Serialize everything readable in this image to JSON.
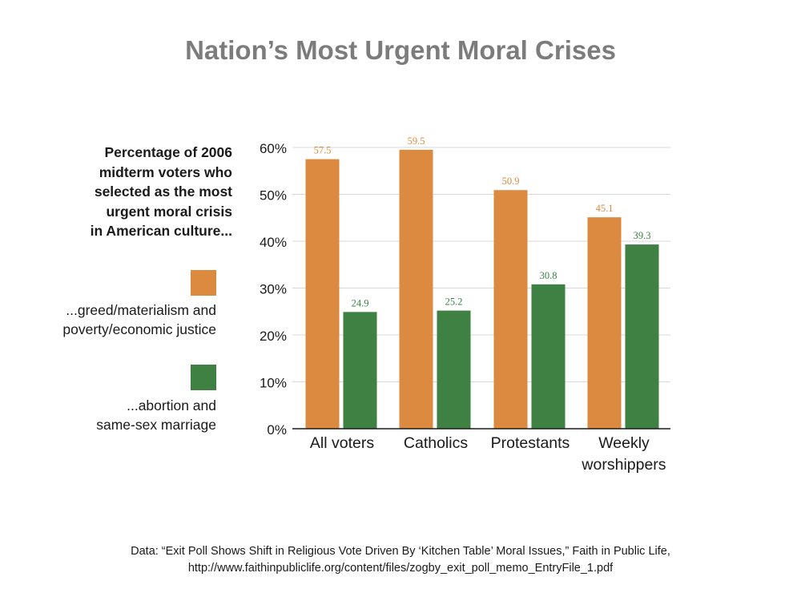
{
  "colors": {
    "series_orange": "#DC8A3F",
    "series_green": "#3E8143",
    "title": "#7C7C7C",
    "grid": "#D9D9D9",
    "text": "#1A1A1A"
  },
  "legend": {
    "heading_lines": [
      "Percentage of 2006",
      "midterm voters who",
      "selected as the most",
      "urgent moral crisis",
      "in American culture..."
    ],
    "items": [
      {
        "lines": [
          "...greed/materialism and",
          "poverty/economic justice"
        ],
        "color": "#DC8A3F"
      },
      {
        "lines": [
          "...abortion and",
          "same-sex marriage"
        ],
        "color": "#3E8143"
      }
    ]
  },
  "source": {
    "line1": "Data: “Exit Poll Shows Shift in Religious Vote Driven By ‘Kitchen Table’ Moral Issues,” Faith in Public Life,",
    "line2": "http://www.faithinpubliclife.org/content/files/zogby_exit_poll_memo_EntryFile_1.pdf"
  },
  "chart_data": {
    "type": "bar",
    "title": "Nation’s Most Urgent Moral Crises",
    "categories": [
      [
        "All voters"
      ],
      [
        "Catholics"
      ],
      [
        "Protestants"
      ],
      [
        "Weekly",
        "worshippers"
      ]
    ],
    "series": [
      {
        "color": "#DC8A3F",
        "values": [
          57.5,
          59.5,
          50.9,
          45.1
        ],
        "labels": [
          "57.5",
          "59.5",
          "50.9",
          "45.1"
        ]
      },
      {
        "color": "#3E8143",
        "values": [
          24.9,
          25.2,
          30.8,
          39.3
        ],
        "labels": [
          "24.9",
          "25.2",
          "30.8",
          "39.3"
        ]
      }
    ],
    "yticks": [
      "0%",
      "10%",
      "20%",
      "30%",
      "40%",
      "50%",
      "60%"
    ],
    "ylim": [
      0,
      60
    ],
    "grid": true,
    "legend_position": "left"
  }
}
